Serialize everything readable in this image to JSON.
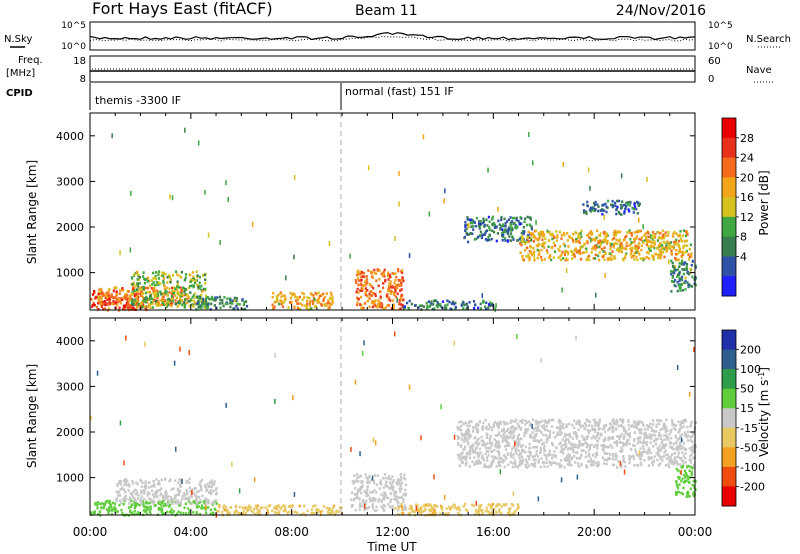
{
  "header": {
    "station": "Fort Hays East (fitACF)",
    "beam": "Beam 11",
    "date": "24/Nov/2016"
  },
  "sky_panel": {
    "left_label": "N.Sky",
    "right_label": "N.Search",
    "tick_top": "10^5",
    "tick_bottom": "10^0"
  },
  "freq_panel": {
    "left_label_1": "Freq.",
    "left_label_2": "[MHz]",
    "left_ticks": [
      "18",
      "8"
    ],
    "right_label": "Nave",
    "right_ticks": [
      "60",
      "0"
    ]
  },
  "cpid_panel": {
    "label": "CPID",
    "modes": [
      {
        "label": "themis -3300 IF",
        "start_hour": 0
      },
      {
        "label": "normal (fast) 151 IF",
        "start_hour": 10
      }
    ]
  },
  "time_axis": {
    "label": "Time UT",
    "ticks": [
      "00:00",
      "04:00",
      "08:00",
      "12:00",
      "16:00",
      "20:00",
      "00:00"
    ],
    "range_hours": [
      0,
      24
    ]
  },
  "colors": {
    "power_scale": [
      "#1f1fff",
      "#2f52a8",
      "#3a7d4e",
      "#3fa842",
      "#d6c21e",
      "#f3a51a",
      "#f46a1c",
      "#e8301a",
      "#e80000"
    ],
    "velocity_scale": [
      "#e80000",
      "#f04c10",
      "#f4a020",
      "#e8c860",
      "#c8c8c8",
      "#5fcd3c",
      "#2e9c48",
      "#2f5f8f",
      "#2030a8"
    ]
  },
  "chart_data": [
    {
      "type": "heatmap",
      "panel": "power",
      "ylabel": "Slant Range [km]",
      "xlabel": "",
      "xlim": [
        0,
        24
      ],
      "ylim": [
        180,
        4500
      ],
      "y_ticks": [
        "4000",
        "3000",
        "2000",
        "1000"
      ],
      "y_tick_values": [
        4000,
        3000,
        2000,
        1000
      ],
      "colorbar_label": "Power [dB]",
      "colorbar_ticks": [
        "28",
        "24",
        "20",
        "16",
        "12",
        "8",
        "4"
      ],
      "colorbar_range": [
        0,
        32
      ],
      "regions": [
        {
          "t0": 0.0,
          "t1": 2.3,
          "r0": 200,
          "r1": 620,
          "level": 26
        },
        {
          "t0": 0.3,
          "t1": 3.8,
          "r0": 300,
          "r1": 700,
          "level": 22
        },
        {
          "t0": 1.6,
          "t1": 4.6,
          "r0": 250,
          "r1": 1050,
          "level": 14
        },
        {
          "t0": 4.0,
          "t1": 6.2,
          "r0": 220,
          "r1": 500,
          "level": 10
        },
        {
          "t0": 7.2,
          "t1": 9.6,
          "r0": 220,
          "r1": 600,
          "level": 19
        },
        {
          "t0": 10.5,
          "t1": 12.4,
          "r0": 220,
          "r1": 1100,
          "level": 23
        },
        {
          "t0": 12.4,
          "t1": 16.0,
          "r0": 220,
          "r1": 420,
          "level": 8
        },
        {
          "t0": 14.8,
          "t1": 17.5,
          "r0": 1700,
          "r1": 2250,
          "level": 8
        },
        {
          "t0": 17.0,
          "t1": 23.9,
          "r0": 1300,
          "r1": 1950,
          "level": 18
        },
        {
          "t0": 19.5,
          "t1": 21.8,
          "r0": 2300,
          "r1": 2600,
          "level": 7
        },
        {
          "t0": 23.0,
          "t1": 24.0,
          "r0": 600,
          "r1": 1300,
          "level": 10
        }
      ]
    },
    {
      "type": "heatmap",
      "panel": "velocity",
      "ylabel": "Slant Range [km]",
      "xlabel": "Time UT",
      "xlim": [
        0,
        24
      ],
      "ylim": [
        180,
        4500
      ],
      "y_ticks": [
        "4000",
        "3000",
        "2000",
        "1000"
      ],
      "y_tick_values": [
        4000,
        3000,
        2000,
        1000
      ],
      "colorbar_label": "Velocity [m s^-1]",
      "colorbar_ticks": [
        "200",
        "100",
        "50",
        "15",
        "-15",
        "-50",
        "-100",
        "-200"
      ],
      "regions": [
        {
          "t0": 0.0,
          "t1": 5.0,
          "r0": 200,
          "r1": 520,
          "velocity": 30
        },
        {
          "t0": 1.0,
          "t1": 5.0,
          "r0": 450,
          "r1": 1000,
          "velocity": 0
        },
        {
          "t0": 5.0,
          "t1": 10.0,
          "r0": 200,
          "r1": 420,
          "velocity": -40
        },
        {
          "t0": 10.3,
          "t1": 12.5,
          "r0": 300,
          "r1": 1100,
          "velocity": 0
        },
        {
          "t0": 12.0,
          "t1": 17.0,
          "r0": 200,
          "r1": 450,
          "velocity": -40
        },
        {
          "t0": 14.5,
          "t1": 24.0,
          "r0": 1250,
          "r1": 2300,
          "velocity": 0
        },
        {
          "t0": 23.2,
          "t1": 24.0,
          "r0": 600,
          "r1": 1300,
          "velocity": 30
        }
      ]
    }
  ]
}
